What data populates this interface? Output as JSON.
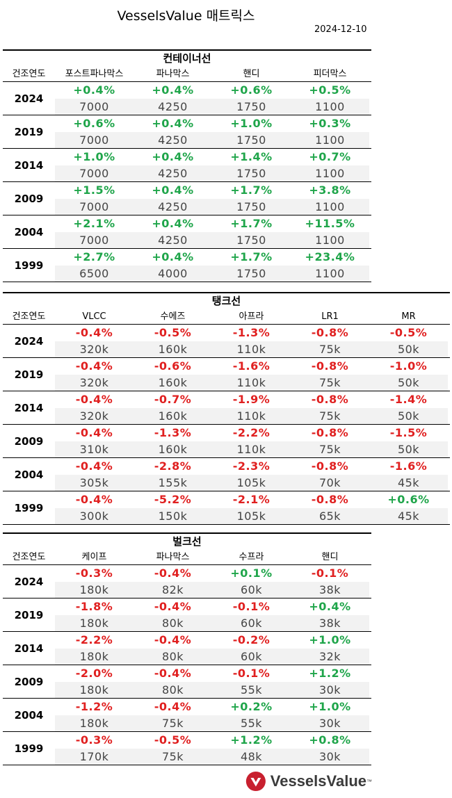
{
  "title": "VesselsValue 매트릭스",
  "date": "2024-12-10",
  "year_header": "건조연도",
  "container": {
    "name": "컨테이너선",
    "columns": [
      "포스트파나막스",
      "파나막스",
      "핸디",
      "피더막스"
    ],
    "rows": [
      {
        "year": "2024",
        "cells": [
          {
            "pct": "+0.4%",
            "val": "7000",
            "sign": "pos"
          },
          {
            "pct": "+0.4%",
            "val": "4250",
            "sign": "pos"
          },
          {
            "pct": "+0.6%",
            "val": "1750",
            "sign": "pos"
          },
          {
            "pct": "+0.5%",
            "val": "1100",
            "sign": "pos"
          }
        ]
      },
      {
        "year": "2019",
        "cells": [
          {
            "pct": "+0.6%",
            "val": "7000",
            "sign": "pos"
          },
          {
            "pct": "+0.4%",
            "val": "4250",
            "sign": "pos"
          },
          {
            "pct": "+1.0%",
            "val": "1750",
            "sign": "pos"
          },
          {
            "pct": "+0.3%",
            "val": "1100",
            "sign": "pos"
          }
        ]
      },
      {
        "year": "2014",
        "cells": [
          {
            "pct": "+1.0%",
            "val": "7000",
            "sign": "pos"
          },
          {
            "pct": "+0.4%",
            "val": "4250",
            "sign": "pos"
          },
          {
            "pct": "+1.4%",
            "val": "1750",
            "sign": "pos"
          },
          {
            "pct": "+0.7%",
            "val": "1100",
            "sign": "pos"
          }
        ]
      },
      {
        "year": "2009",
        "cells": [
          {
            "pct": "+1.5%",
            "val": "7000",
            "sign": "pos"
          },
          {
            "pct": "+0.4%",
            "val": "4250",
            "sign": "pos"
          },
          {
            "pct": "+1.7%",
            "val": "1750",
            "sign": "pos"
          },
          {
            "pct": "+3.8%",
            "val": "1100",
            "sign": "pos"
          }
        ]
      },
      {
        "year": "2004",
        "cells": [
          {
            "pct": "+2.1%",
            "val": "7000",
            "sign": "pos"
          },
          {
            "pct": "+0.4%",
            "val": "4250",
            "sign": "pos"
          },
          {
            "pct": "+1.7%",
            "val": "1750",
            "sign": "pos"
          },
          {
            "pct": "+11.5%",
            "val": "1100",
            "sign": "pos"
          }
        ]
      },
      {
        "year": "1999",
        "cells": [
          {
            "pct": "+2.7%",
            "val": "6500",
            "sign": "pos"
          },
          {
            "pct": "+0.4%",
            "val": "4000",
            "sign": "pos"
          },
          {
            "pct": "+1.7%",
            "val": "1750",
            "sign": "pos"
          },
          {
            "pct": "+23.4%",
            "val": "1100",
            "sign": "pos"
          }
        ]
      }
    ]
  },
  "tanker": {
    "name": "탱크선",
    "columns": [
      "VLCC",
      "수에즈",
      "아프라",
      "LR1",
      "MR"
    ],
    "rows": [
      {
        "year": "2024",
        "cells": [
          {
            "pct": "-0.4%",
            "val": "320k",
            "sign": "neg"
          },
          {
            "pct": "-0.5%",
            "val": "160k",
            "sign": "neg"
          },
          {
            "pct": "-1.3%",
            "val": "110k",
            "sign": "neg"
          },
          {
            "pct": "-0.8%",
            "val": "75k",
            "sign": "neg"
          },
          {
            "pct": "-0.5%",
            "val": "50k",
            "sign": "neg"
          }
        ]
      },
      {
        "year": "2019",
        "cells": [
          {
            "pct": "-0.4%",
            "val": "320k",
            "sign": "neg"
          },
          {
            "pct": "-0.6%",
            "val": "160k",
            "sign": "neg"
          },
          {
            "pct": "-1.6%",
            "val": "110k",
            "sign": "neg"
          },
          {
            "pct": "-0.8%",
            "val": "75k",
            "sign": "neg"
          },
          {
            "pct": "-1.0%",
            "val": "50k",
            "sign": "neg"
          }
        ]
      },
      {
        "year": "2014",
        "cells": [
          {
            "pct": "-0.4%",
            "val": "320k",
            "sign": "neg"
          },
          {
            "pct": "-0.7%",
            "val": "160k",
            "sign": "neg"
          },
          {
            "pct": "-1.9%",
            "val": "110k",
            "sign": "neg"
          },
          {
            "pct": "-0.8%",
            "val": "75k",
            "sign": "neg"
          },
          {
            "pct": "-1.4%",
            "val": "50k",
            "sign": "neg"
          }
        ]
      },
      {
        "year": "2009",
        "cells": [
          {
            "pct": "-0.4%",
            "val": "310k",
            "sign": "neg"
          },
          {
            "pct": "-1.3%",
            "val": "160k",
            "sign": "neg"
          },
          {
            "pct": "-2.2%",
            "val": "110k",
            "sign": "neg"
          },
          {
            "pct": "-0.8%",
            "val": "75k",
            "sign": "neg"
          },
          {
            "pct": "-1.5%",
            "val": "50k",
            "sign": "neg"
          }
        ]
      },
      {
        "year": "2004",
        "cells": [
          {
            "pct": "-0.4%",
            "val": "305k",
            "sign": "neg"
          },
          {
            "pct": "-2.8%",
            "val": "155k",
            "sign": "neg"
          },
          {
            "pct": "-2.3%",
            "val": "105k",
            "sign": "neg"
          },
          {
            "pct": "-0.8%",
            "val": "70k",
            "sign": "neg"
          },
          {
            "pct": "-1.6%",
            "val": "45k",
            "sign": "neg"
          }
        ]
      },
      {
        "year": "1999",
        "cells": [
          {
            "pct": "-0.4%",
            "val": "300k",
            "sign": "neg"
          },
          {
            "pct": "-5.2%",
            "val": "150k",
            "sign": "neg"
          },
          {
            "pct": "-2.1%",
            "val": "105k",
            "sign": "neg"
          },
          {
            "pct": "-0.8%",
            "val": "65k",
            "sign": "neg"
          },
          {
            "pct": "+0.6%",
            "val": "45k",
            "sign": "pos"
          }
        ]
      }
    ]
  },
  "bulk": {
    "name": "벌크선",
    "columns": [
      "케이프",
      "파나막스",
      "수프라",
      "핸디"
    ],
    "rows": [
      {
        "year": "2024",
        "cells": [
          {
            "pct": "-0.3%",
            "val": "180k",
            "sign": "neg"
          },
          {
            "pct": "-0.4%",
            "val": "82k",
            "sign": "neg"
          },
          {
            "pct": "+0.1%",
            "val": "60k",
            "sign": "pos"
          },
          {
            "pct": "-0.1%",
            "val": "38k",
            "sign": "neg"
          }
        ]
      },
      {
        "year": "2019",
        "cells": [
          {
            "pct": "-1.8%",
            "val": "180k",
            "sign": "neg"
          },
          {
            "pct": "-0.4%",
            "val": "80k",
            "sign": "neg"
          },
          {
            "pct": "-0.1%",
            "val": "60k",
            "sign": "neg"
          },
          {
            "pct": "+0.4%",
            "val": "38k",
            "sign": "pos"
          }
        ]
      },
      {
        "year": "2014",
        "cells": [
          {
            "pct": "-2.2%",
            "val": "180k",
            "sign": "neg"
          },
          {
            "pct": "-0.4%",
            "val": "80k",
            "sign": "neg"
          },
          {
            "pct": "-0.2%",
            "val": "60k",
            "sign": "neg"
          },
          {
            "pct": "+1.0%",
            "val": "32k",
            "sign": "pos"
          }
        ]
      },
      {
        "year": "2009",
        "cells": [
          {
            "pct": "-2.0%",
            "val": "180k",
            "sign": "neg"
          },
          {
            "pct": "-0.4%",
            "val": "80k",
            "sign": "neg"
          },
          {
            "pct": "-0.1%",
            "val": "55k",
            "sign": "neg"
          },
          {
            "pct": "+1.2%",
            "val": "30k",
            "sign": "pos"
          }
        ]
      },
      {
        "year": "2004",
        "cells": [
          {
            "pct": "-1.2%",
            "val": "180k",
            "sign": "neg"
          },
          {
            "pct": "-0.4%",
            "val": "75k",
            "sign": "neg"
          },
          {
            "pct": "+0.2%",
            "val": "55k",
            "sign": "pos"
          },
          {
            "pct": "+1.0%",
            "val": "30k",
            "sign": "pos"
          }
        ]
      },
      {
        "year": "1999",
        "cells": [
          {
            "pct": "-0.3%",
            "val": "170k",
            "sign": "neg"
          },
          {
            "pct": "-0.5%",
            "val": "75k",
            "sign": "neg"
          },
          {
            "pct": "+1.2%",
            "val": "48k",
            "sign": "pos"
          },
          {
            "pct": "+0.8%",
            "val": "30k",
            "sign": "pos"
          }
        ]
      }
    ]
  },
  "colors": {
    "positive": "#1fa54a",
    "negative": "#e02020",
    "brand": "#c8202f"
  },
  "logo": {
    "text": "VesselsValue",
    "tm": "™",
    "icon": "vesselsvalue-logo-icon"
  }
}
